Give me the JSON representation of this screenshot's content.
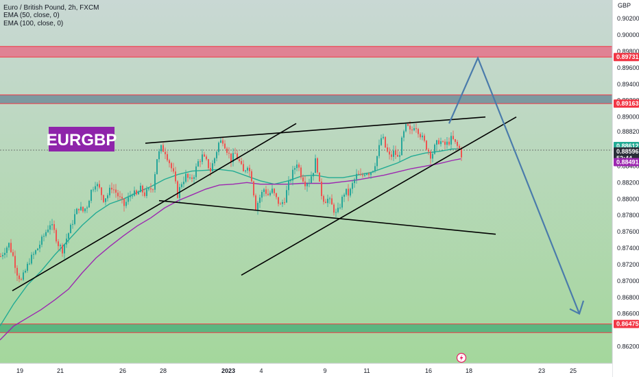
{
  "header": {
    "symbol_line": "Euro / British Pound, 2h, FXCM",
    "indicator_1": "EMA (50, close, 0)",
    "indicator_2": "EMA (100, close, 0)"
  },
  "badge": {
    "label": "EURGBP"
  },
  "colors": {
    "background_top": "#c9d8d4",
    "background_bottom": "#a4d79c",
    "candle_up": "#26a69a",
    "candle_down": "#ef5350",
    "ema50": "#22ab94",
    "ema100": "#9c27b0",
    "trendline": "#000000",
    "projection": "#4a7bab",
    "zone_red": "#e57389",
    "zone_gray": "#708e99",
    "zone_green": "#4fb07a",
    "badge": "#8e24aa",
    "tag_red": "#f23645",
    "tag_current": "#2a2e39",
    "tag_ema50": "#22ab94",
    "tag_ema100": "#9c27b0"
  },
  "chart_data": {
    "type": "candlestick",
    "currency": "GBP",
    "ylim": [
      0.8614,
      0.9036
    ],
    "y_ticks": [
      "0.90200",
      "0.90000",
      "0.89800",
      "0.89600",
      "0.89400",
      "0.89200",
      "0.89000",
      "0.88820",
      "0.88600",
      "0.88400",
      "0.88200",
      "0.88000",
      "0.87800",
      "0.87600",
      "0.87400",
      "0.87200",
      "0.87000",
      "0.86800",
      "0.86600",
      "0.86475",
      "0.86200"
    ],
    "x_ticks": [
      "19",
      "21",
      "26",
      "28",
      "2023",
      "4",
      "9",
      "11",
      "16",
      "18",
      "23",
      "25"
    ],
    "price_tags": [
      {
        "label": "0.89731",
        "value": 0.89731,
        "kind": "level"
      },
      {
        "label": "0.89163",
        "value": 0.89163,
        "kind": "level"
      },
      {
        "label": "0.88612",
        "value": 0.88612,
        "kind": "ema50"
      },
      {
        "label": "0.88596",
        "value": 0.88596,
        "kind": "current"
      },
      {
        "label": "52:44",
        "value": 0.88565,
        "kind": "countdown"
      },
      {
        "label": "0.88491",
        "value": 0.88491,
        "kind": "ema100"
      },
      {
        "label": "0.86475",
        "value": 0.86475,
        "kind": "level"
      }
    ],
    "zones": [
      {
        "name": "resistance-upper",
        "low": 0.89731,
        "high": 0.8986,
        "color": "zone_red"
      },
      {
        "name": "resistance-mid",
        "low": 0.89163,
        "high": 0.8927,
        "color": "zone_gray"
      },
      {
        "name": "support-lower",
        "low": 0.8637,
        "high": 0.86475,
        "color": "zone_green"
      }
    ],
    "series": [
      {
        "name": "EMA (50, close, 0)",
        "kind": "line",
        "color": "ema50",
        "points": [
          [
            0,
            0.8645
          ],
          [
            20,
            0.8672
          ],
          [
            40,
            0.8695
          ],
          [
            60,
            0.8712
          ],
          [
            80,
            0.8732
          ],
          [
            100,
            0.875
          ],
          [
            120,
            0.8768
          ],
          [
            140,
            0.8783
          ],
          [
            160,
            0.8794
          ],
          [
            180,
            0.88
          ],
          [
            200,
            0.8808
          ],
          [
            220,
            0.8815
          ],
          [
            240,
            0.8824
          ],
          [
            260,
            0.883
          ],
          [
            280,
            0.8834
          ],
          [
            300,
            0.8835
          ],
          [
            320,
            0.8836
          ],
          [
            340,
            0.8834
          ],
          [
            360,
            0.8828
          ],
          [
            380,
            0.8822
          ],
          [
            400,
            0.8818
          ],
          [
            420,
            0.8822
          ],
          [
            440,
            0.8828
          ],
          [
            460,
            0.8829
          ],
          [
            480,
            0.8826
          ],
          [
            500,
            0.8826
          ],
          [
            520,
            0.8829
          ],
          [
            540,
            0.8832
          ],
          [
            560,
            0.8838
          ],
          [
            580,
            0.8844
          ],
          [
            600,
            0.8852
          ],
          [
            620,
            0.8856
          ],
          [
            640,
            0.8858
          ],
          [
            660,
            0.8861
          ],
          [
            672,
            0.8861
          ]
        ]
      },
      {
        "name": "EMA (100, close, 0)",
        "kind": "line",
        "color": "ema100",
        "points": [
          [
            0,
            0.8628
          ],
          [
            20,
            0.8645
          ],
          [
            40,
            0.8655
          ],
          [
            60,
            0.8665
          ],
          [
            80,
            0.8677
          ],
          [
            100,
            0.869
          ],
          [
            120,
            0.871
          ],
          [
            140,
            0.8728
          ],
          [
            160,
            0.8742
          ],
          [
            180,
            0.8755
          ],
          [
            200,
            0.8767
          ],
          [
            220,
            0.8777
          ],
          [
            240,
            0.8789
          ],
          [
            260,
            0.8798
          ],
          [
            280,
            0.8805
          ],
          [
            300,
            0.8812
          ],
          [
            320,
            0.8817
          ],
          [
            340,
            0.8818
          ],
          [
            360,
            0.882
          ],
          [
            380,
            0.8818
          ],
          [
            400,
            0.8818
          ],
          [
            420,
            0.8818
          ],
          [
            440,
            0.8819
          ],
          [
            460,
            0.8819
          ],
          [
            480,
            0.8819
          ],
          [
            500,
            0.8821
          ],
          [
            520,
            0.8823
          ],
          [
            540,
            0.8826
          ],
          [
            560,
            0.8829
          ],
          [
            580,
            0.8833
          ],
          [
            600,
            0.8837
          ],
          [
            620,
            0.884
          ],
          [
            640,
            0.8843
          ],
          [
            660,
            0.8847
          ],
          [
            672,
            0.8849
          ]
        ]
      }
    ],
    "candles_path": [
      [
        0,
        0.873
      ],
      [
        6,
        0.8738
      ],
      [
        12,
        0.8745
      ],
      [
        18,
        0.873
      ],
      [
        24,
        0.871
      ],
      [
        30,
        0.87
      ],
      [
        36,
        0.8712
      ],
      [
        42,
        0.8725
      ],
      [
        48,
        0.8732
      ],
      [
        54,
        0.874
      ],
      [
        60,
        0.875
      ],
      [
        66,
        0.876
      ],
      [
        72,
        0.877
      ],
      [
        78,
        0.876
      ],
      [
        84,
        0.8745
      ],
      [
        90,
        0.8738
      ],
      [
        96,
        0.8752
      ],
      [
        102,
        0.8765
      ],
      [
        108,
        0.878
      ],
      [
        114,
        0.879
      ],
      [
        120,
        0.8785
      ],
      [
        126,
        0.8792
      ],
      [
        132,
        0.881
      ],
      [
        138,
        0.882
      ],
      [
        144,
        0.8812
      ],
      [
        150,
        0.88
      ],
      [
        156,
        0.8805
      ],
      [
        162,
        0.8815
      ],
      [
        168,
        0.8808
      ],
      [
        174,
        0.88
      ],
      [
        180,
        0.8792
      ],
      [
        186,
        0.88
      ],
      [
        192,
        0.8808
      ],
      [
        198,
        0.8804
      ],
      [
        204,
        0.8812
      ],
      [
        210,
        0.8806
      ],
      [
        216,
        0.881
      ],
      [
        222,
        0.8815
      ],
      [
        228,
        0.885
      ],
      [
        234,
        0.8862
      ],
      [
        240,
        0.8858
      ],
      [
        246,
        0.8845
      ],
      [
        252,
        0.883
      ],
      [
        258,
        0.8805
      ],
      [
        264,
        0.882
      ],
      [
        270,
        0.8828
      ],
      [
        276,
        0.8822
      ],
      [
        282,
        0.883
      ],
      [
        288,
        0.8845
      ],
      [
        294,
        0.8852
      ],
      [
        300,
        0.8845
      ],
      [
        306,
        0.8835
      ],
      [
        312,
        0.885
      ],
      [
        318,
        0.8868
      ],
      [
        324,
        0.8872
      ],
      [
        330,
        0.886
      ],
      [
        336,
        0.8848
      ],
      [
        342,
        0.8855
      ],
      [
        348,
        0.8845
      ],
      [
        354,
        0.8832
      ],
      [
        360,
        0.8842
      ],
      [
        366,
        0.8825
      ],
      [
        372,
        0.879
      ],
      [
        378,
        0.8802
      ],
      [
        384,
        0.8812
      ],
      [
        390,
        0.8805
      ],
      [
        396,
        0.881
      ],
      [
        402,
        0.88
      ],
      [
        408,
        0.8792
      ],
      [
        414,
        0.88
      ],
      [
        420,
        0.8818
      ],
      [
        426,
        0.8832
      ],
      [
        432,
        0.8845
      ],
      [
        438,
        0.883
      ],
      [
        444,
        0.882
      ],
      [
        450,
        0.8822
      ],
      [
        456,
        0.8835
      ],
      [
        460,
        0.885
      ],
      [
        466,
        0.881
      ],
      [
        472,
        0.8798
      ],
      [
        478,
        0.88
      ],
      [
        484,
        0.879
      ],
      [
        490,
        0.878
      ],
      [
        496,
        0.8795
      ],
      [
        502,
        0.881
      ],
      [
        508,
        0.8805
      ],
      [
        514,
        0.882
      ],
      [
        520,
        0.883
      ],
      [
        526,
        0.8826
      ],
      [
        532,
        0.8834
      ],
      [
        538,
        0.8832
      ],
      [
        544,
        0.8838
      ],
      [
        550,
        0.8855
      ],
      [
        556,
        0.8878
      ],
      [
        562,
        0.886
      ],
      [
        568,
        0.885
      ],
      [
        574,
        0.8858
      ],
      [
        580,
        0.8848
      ],
      [
        586,
        0.8875
      ],
      [
        592,
        0.889
      ],
      [
        598,
        0.888
      ],
      [
        604,
        0.8892
      ],
      [
        610,
        0.8882
      ],
      [
        616,
        0.8872
      ],
      [
        622,
        0.8862
      ],
      [
        628,
        0.8852
      ],
      [
        634,
        0.8865
      ],
      [
        640,
        0.8872
      ],
      [
        646,
        0.8865
      ],
      [
        652,
        0.8868
      ],
      [
        658,
        0.8874
      ],
      [
        664,
        0.8866
      ],
      [
        670,
        0.886
      ],
      [
        674,
        0.8848
      ]
    ]
  },
  "annotations": {
    "trendlines": [
      {
        "name": "rising-channel-support-left",
        "x1": 18,
        "y1": 0.8688,
        "x2": 432,
        "y2": 0.8892
      },
      {
        "name": "rising-wedge-top",
        "x1": 212,
        "y1": 0.8868,
        "x2": 708,
        "y2": 0.89
      },
      {
        "name": "descending-line",
        "x1": 232,
        "y1": 0.8798,
        "x2": 723,
        "y2": 0.8757
      },
      {
        "name": "rising-channel-support-right",
        "x1": 352,
        "y1": 0.8707,
        "x2": 753,
        "y2": 0.89
      }
    ],
    "projection_points": [
      [
        655,
        0.8892
      ],
      [
        697,
        0.8972
      ],
      [
        845,
        0.866
      ]
    ],
    "arrow_tip": [
      845,
      0.866
    ]
  },
  "footer": {
    "lightning_icon": "lightning-icon"
  }
}
